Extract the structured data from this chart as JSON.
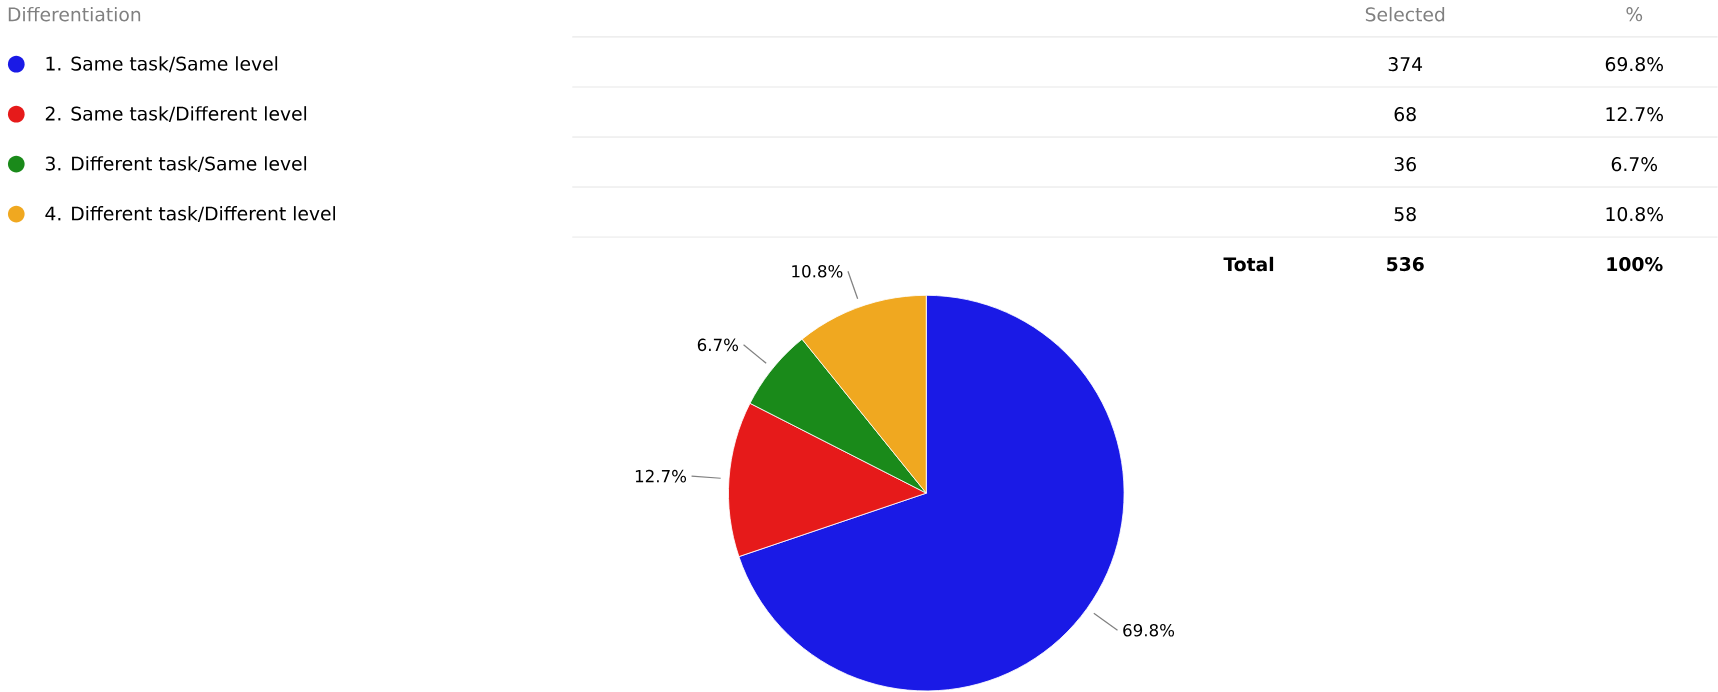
{
  "chart_data": {
    "type": "pie",
    "legend_title": "Differentiation",
    "legend": "top left",
    "categories": [
      "1. Same task/Same level",
      "2. Same task/Different level",
      "3. Different task/Same level",
      "4. Different task/Different level"
    ],
    "values": [
      69.8,
      12.7,
      6.7,
      10.8
    ],
    "value_labels": [
      "69.8%",
      "12.7%",
      "6.7%",
      "10.8%"
    ],
    "colors": [
      "#1a1ae6",
      "#e61a1a",
      "#1a8a1a",
      "#f0a820"
    ],
    "annotations": [
      "Selected",
      "%",
      "374",
      "68",
      "36",
      "58",
      "Total",
      "536",
      "100%"
    ]
  }
}
